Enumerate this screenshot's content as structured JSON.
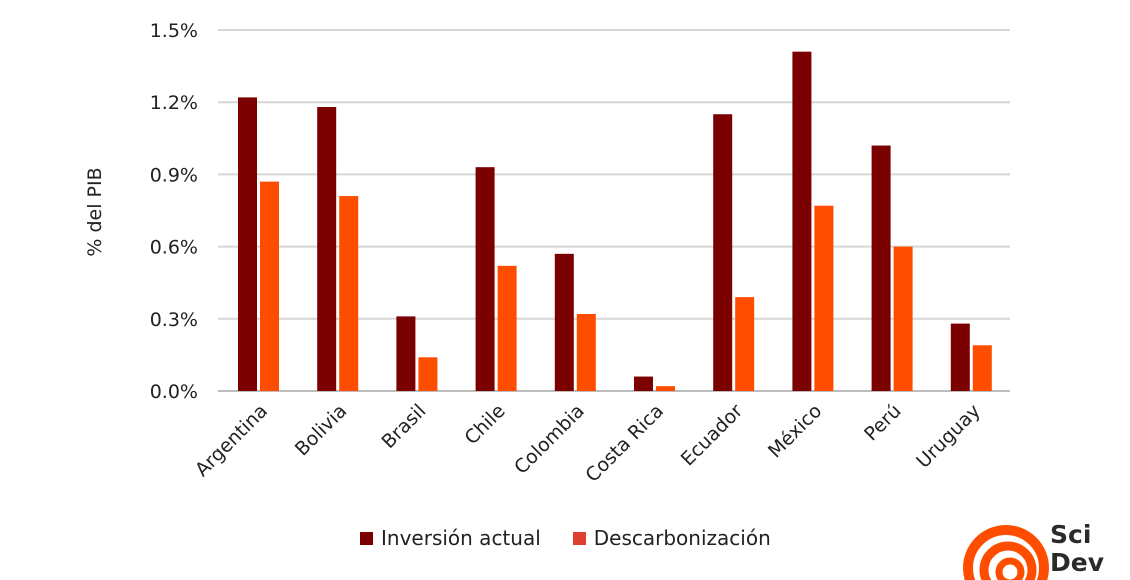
{
  "chart_data": {
    "type": "bar",
    "ylabel": "% del PIB",
    "xlabel": "",
    "ylim": [
      0,
      1.5
    ],
    "yticks": [
      "0.0%",
      "0.3%",
      "0.6%",
      "0.9%",
      "1.2%",
      "1.5%"
    ],
    "ytick_values": [
      0,
      0.3,
      0.6,
      0.9,
      1.2,
      1.5
    ],
    "grid": true,
    "legend_position": "bottom",
    "categories": [
      "Argentina",
      "Bolivia",
      "Brasil",
      "Chile",
      "Colombia",
      "Costa Rica",
      "Ecuador",
      "México",
      "Perú",
      "Uruguay"
    ],
    "series": [
      {
        "name": "Inversión actual",
        "color": "#7b0000",
        "values": [
          1.22,
          1.18,
          0.31,
          0.93,
          0.57,
          0.06,
          1.15,
          1.41,
          1.02,
          0.28
        ]
      },
      {
        "name": "Descarbonización",
        "color": "#ff4d00",
        "values": [
          0.87,
          0.81,
          0.14,
          0.52,
          0.32,
          0.02,
          0.39,
          0.77,
          0.6,
          0.19
        ]
      }
    ]
  },
  "legend": {
    "items": [
      {
        "label": "Inversión actual",
        "color": "#7b0000"
      },
      {
        "label": "Descarbonización",
        "color": "#e04030"
      }
    ]
  },
  "logo": {
    "line1": "Sci",
    "line2": "Dev",
    "color": "#ff4d00",
    "icon": "swirl-logo-icon"
  }
}
